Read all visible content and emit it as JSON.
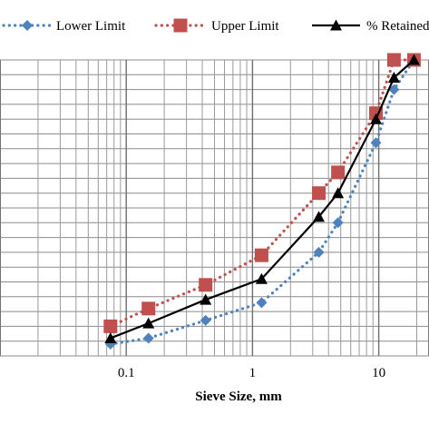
{
  "chart_data": {
    "type": "line",
    "xlabel": "Sieve Size, mm",
    "ylabel": "",
    "xscale": "log",
    "xlim": [
      0.01,
      25
    ],
    "ylim": [
      0,
      100
    ],
    "y_major_step": 5,
    "grid": true,
    "legend_position": "top",
    "x_ticks": [
      {
        "value": 0.1,
        "label": "0.1"
      },
      {
        "value": 1,
        "label": "1"
      },
      {
        "value": 10,
        "label": "10"
      }
    ],
    "series": [
      {
        "name": "Lower Limit",
        "color": "#4f81bd",
        "marker": "diamond",
        "line_style": "dotted",
        "x": [
          0.075,
          0.15,
          0.425,
          1.18,
          3.35,
          4.75,
          9.5,
          13.2,
          19
        ],
        "y": [
          4,
          6,
          12,
          18,
          35,
          45,
          72,
          90,
          100
        ]
      },
      {
        "name": "Upper Limit",
        "color": "#c0504d",
        "marker": "square",
        "line_style": "dotted",
        "x": [
          0.075,
          0.15,
          0.425,
          1.18,
          3.35,
          4.75,
          9.5,
          13.2,
          19
        ],
        "y": [
          10,
          16,
          24,
          34,
          55,
          62,
          82,
          100,
          100
        ]
      },
      {
        "name": "% Retained",
        "color": "#000000",
        "marker": "triangle",
        "line_style": "solid",
        "x": [
          0.075,
          0.15,
          0.425,
          1.18,
          3.35,
          4.75,
          9.5,
          13.2,
          19
        ],
        "y": [
          6,
          11,
          19,
          26,
          47,
          55,
          80,
          94,
          100
        ]
      }
    ]
  }
}
